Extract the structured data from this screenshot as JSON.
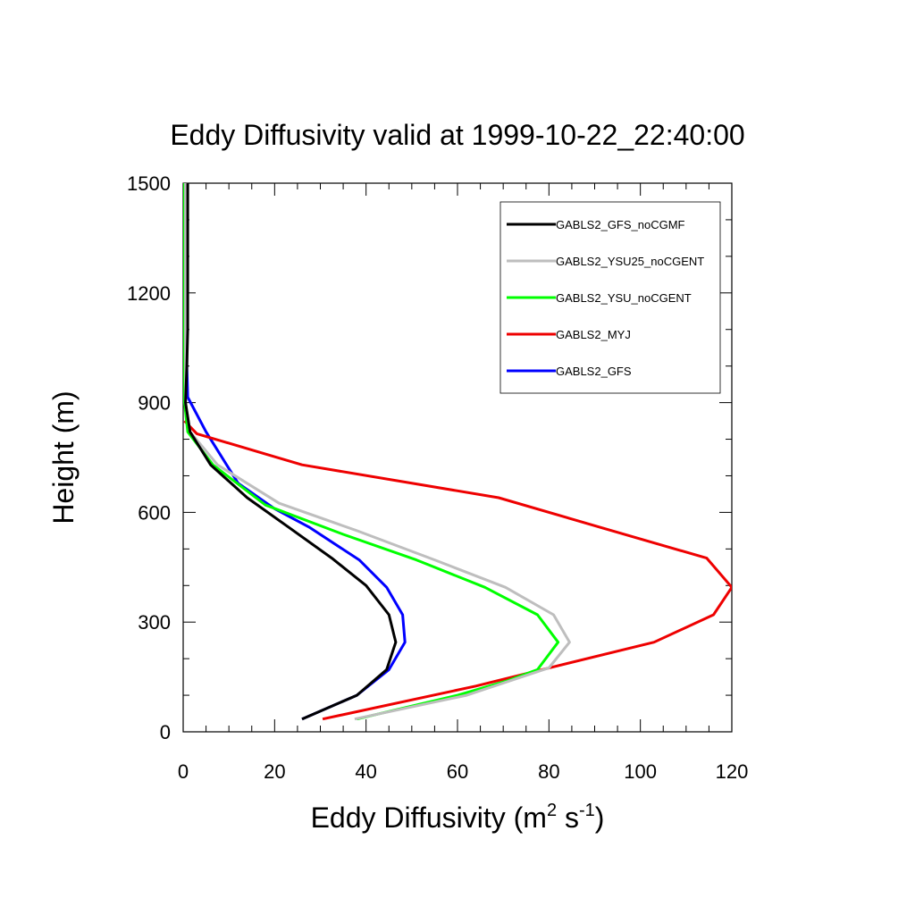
{
  "chart_data": {
    "type": "line",
    "title": "Eddy Diffusivity valid at 1999-10-22_22:40:00",
    "xlabel": {
      "base": "Eddy Diffusivity (m",
      "sup1": "2",
      "mid": " s",
      "sup2": "-1",
      "end": ")"
    },
    "ylabel": "Height (m)",
    "xlim": [
      0,
      120
    ],
    "ylim": [
      0,
      1500
    ],
    "xticks": [
      0,
      20,
      40,
      60,
      80,
      100,
      120
    ],
    "yticks": [
      0,
      300,
      600,
      900,
      1200,
      1500
    ],
    "xtick_labels": [
      "0",
      "20",
      "40",
      "60",
      "80",
      "100",
      "120"
    ],
    "ytick_labels": [
      "0",
      "300",
      "600",
      "900",
      "1200",
      "1500"
    ],
    "legend_position": "top-right",
    "series": [
      {
        "name": "GABLS2_GFS_noCGMF",
        "color": "#000000",
        "points": [
          [
            26,
            35
          ],
          [
            38,
            100
          ],
          [
            44.5,
            170
          ],
          [
            46.5,
            245
          ],
          [
            45,
            320
          ],
          [
            40,
            400
          ],
          [
            32.5,
            475
          ],
          [
            23,
            560
          ],
          [
            14,
            640
          ],
          [
            6,
            730
          ],
          [
            1.5,
            820
          ],
          [
            0.5,
            900
          ],
          [
            0.8,
            1000
          ],
          [
            1,
            1100
          ],
          [
            1,
            1200
          ],
          [
            1,
            1300
          ],
          [
            1,
            1400
          ],
          [
            1,
            1500
          ]
        ]
      },
      {
        "name": "GABLS2_YSU25_noCGENT",
        "color": "#bebebe",
        "points": [
          [
            37.5,
            35
          ],
          [
            62,
            100
          ],
          [
            80,
            175
          ],
          [
            84.5,
            245
          ],
          [
            81,
            320
          ],
          [
            70.5,
            395
          ],
          [
            55,
            470
          ],
          [
            38,
            550
          ],
          [
            21,
            625
          ],
          [
            7.5,
            730
          ],
          [
            1.5,
            820
          ],
          [
            0.5,
            900
          ],
          [
            0.5,
            1000
          ],
          [
            0.5,
            1100
          ],
          [
            0.5,
            1200
          ],
          [
            0.5,
            1300
          ],
          [
            0.5,
            1400
          ],
          [
            0.5,
            1500
          ]
        ]
      },
      {
        "name": "GABLS2_YSU_noCGENT",
        "color": "#00ff00",
        "points": [
          [
            38,
            35
          ],
          [
            60,
            100
          ],
          [
            71,
            140
          ],
          [
            77.5,
            170
          ],
          [
            82,
            245
          ],
          [
            77.5,
            320
          ],
          [
            66,
            395
          ],
          [
            51,
            470
          ],
          [
            35,
            540
          ],
          [
            18,
            620
          ],
          [
            6.5,
            730
          ],
          [
            1,
            820
          ],
          [
            0.3,
            900
          ],
          [
            0.3,
            1000
          ],
          [
            0.3,
            1100
          ],
          [
            0.3,
            1200
          ],
          [
            0.3,
            1300
          ],
          [
            0.3,
            1400
          ],
          [
            0.3,
            1500
          ]
        ]
      },
      {
        "name": "GABLS2_MYJ",
        "color": "#ee0000",
        "points": [
          [
            30.5,
            35
          ],
          [
            64,
            125
          ],
          [
            78.5,
            170
          ],
          [
            103,
            245
          ],
          [
            116,
            320
          ],
          [
            120,
            395
          ],
          [
            114.5,
            475
          ],
          [
            91,
            560
          ],
          [
            69,
            640
          ],
          [
            26,
            730
          ],
          [
            3,
            815
          ],
          [
            0.3,
            850
          ]
        ]
      },
      {
        "name": "GABLS2_GFS",
        "color": "#0000ff",
        "points": [
          [
            26,
            35
          ],
          [
            38,
            100
          ],
          [
            45,
            170
          ],
          [
            48.5,
            245
          ],
          [
            48,
            320
          ],
          [
            44.5,
            395
          ],
          [
            38.5,
            470
          ],
          [
            27.5,
            560
          ],
          [
            20,
            610
          ],
          [
            12,
            680
          ],
          [
            5,
            820
          ],
          [
            1,
            915
          ],
          [
            0.8,
            1000
          ],
          [
            0.8,
            1100
          ],
          [
            0.8,
            1200
          ],
          [
            0.8,
            1300
          ],
          [
            0.8,
            1400
          ],
          [
            0.8,
            1500
          ]
        ]
      }
    ]
  }
}
